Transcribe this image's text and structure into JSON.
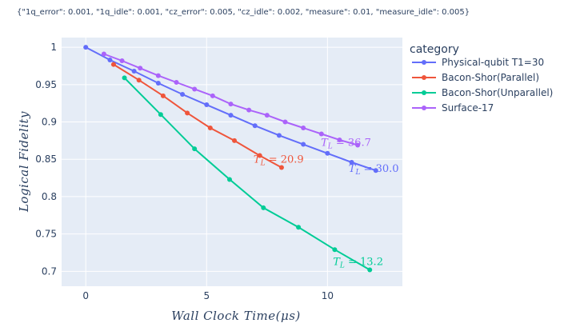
{
  "chart_data": {
    "type": "line",
    "subtitle": "{\"1q_error\": 0.001, \"1q_idle\": 0.001, \"cz_error\": 0.005, \"cz_idle\": 0.002, \"measure\": 0.01, \"measure_idle\": 0.005}",
    "xlabel": "Wall Clock Time(μs)",
    "ylabel": "Logical Fidelity",
    "xlim": [
      -1,
      13.1
    ],
    "ylim": [
      0.68,
      1.013
    ],
    "xticks": [
      0,
      5,
      10
    ],
    "yticks": [
      0.7,
      0.75,
      0.8,
      0.85,
      0.9,
      0.95,
      1
    ],
    "ytick_labels": [
      "0.7",
      "0.75",
      "0.8",
      "0.85",
      "0.9",
      "0.95",
      "1"
    ],
    "grid": true,
    "plot_background": "#e5ecf6",
    "legend": {
      "title": "category",
      "placement": "right"
    },
    "series": [
      {
        "name": "Physical-qubit T1=30",
        "color": "#636efa",
        "x": [
          0,
          1,
          2,
          3,
          4,
          5,
          6,
          7,
          8,
          9,
          10,
          11,
          12
        ],
        "y": [
          1.0,
          0.983,
          0.968,
          0.952,
          0.937,
          0.923,
          0.909,
          0.895,
          0.882,
          0.87,
          0.858,
          0.846,
          0.835
        ],
        "annotation": {
          "text": "T",
          "sub": "L",
          "value": " = 30.0"
        }
      },
      {
        "name": "Bacon-Shor(Parallel)",
        "color": "#ef553b",
        "x": [
          1.15,
          2.2,
          3.2,
          4.2,
          5.15,
          6.15,
          7.2,
          8.1
        ],
        "y": [
          0.977,
          0.956,
          0.935,
          0.912,
          0.892,
          0.875,
          0.855,
          0.839
        ],
        "annotation": {
          "text": "T",
          "sub": "L",
          "value": " = 20.9"
        }
      },
      {
        "name": "Bacon-Shor(Unparallel)",
        "color": "#00cc96",
        "x": [
          1.6,
          3.1,
          4.5,
          5.95,
          7.35,
          8.8,
          10.3,
          11.75
        ],
        "y": [
          0.959,
          0.91,
          0.864,
          0.823,
          0.785,
          0.759,
          0.729,
          0.702
        ],
        "annotation": {
          "text": "T",
          "sub": "L",
          "value": " = 13.2"
        }
      },
      {
        "name": "Surface-17",
        "color": "#ab63fa",
        "x": [
          0.75,
          1.5,
          2.25,
          3.0,
          3.75,
          4.5,
          5.25,
          6.0,
          6.75,
          7.5,
          8.25,
          9.0,
          9.75,
          10.5,
          11.25
        ],
        "y": [
          0.991,
          0.982,
          0.972,
          0.962,
          0.953,
          0.944,
          0.935,
          0.924,
          0.916,
          0.909,
          0.9,
          0.892,
          0.884,
          0.876,
          0.869
        ],
        "annotation": {
          "text": "T",
          "sub": "L",
          "value": " = 36.7"
        }
      }
    ]
  }
}
